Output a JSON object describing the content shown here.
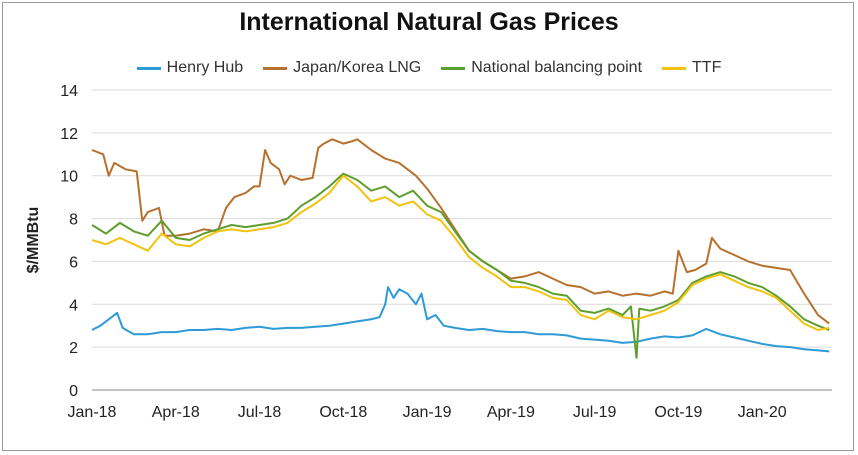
{
  "chart_data": {
    "type": "line",
    "title": "International Natural Gas Prices",
    "xlabel": "",
    "ylabel": "$/MMBtu",
    "ylim": [
      0,
      14
    ],
    "yticks": [
      0,
      2,
      4,
      6,
      8,
      10,
      12,
      14
    ],
    "xticks": [
      {
        "label": "Jan-18",
        "t": 0
      },
      {
        "label": "Apr-18",
        "t": 3
      },
      {
        "label": "Jul-18",
        "t": 6
      },
      {
        "label": "Oct-18",
        "t": 9
      },
      {
        "label": "Jan-19",
        "t": 12
      },
      {
        "label": "Apr-19",
        "t": 15
      },
      {
        "label": "Jul-19",
        "t": 18
      },
      {
        "label": "Oct-19",
        "t": 21
      },
      {
        "label": "Jan-20",
        "t": 24
      }
    ],
    "xlim": [
      0,
      26.5
    ],
    "grid": "horizontal",
    "legend_position": "top",
    "series": [
      {
        "name": "Henry Hub",
        "color": "#2e9bd6",
        "points": [
          [
            0,
            2.8
          ],
          [
            0.3,
            3.0
          ],
          [
            0.6,
            3.3
          ],
          [
            0.9,
            3.6
          ],
          [
            1.1,
            2.9
          ],
          [
            1.5,
            2.6
          ],
          [
            2,
            2.6
          ],
          [
            2.5,
            2.7
          ],
          [
            3,
            2.7
          ],
          [
            3.5,
            2.8
          ],
          [
            4,
            2.8
          ],
          [
            4.5,
            2.85
          ],
          [
            5,
            2.8
          ],
          [
            5.5,
            2.9
          ],
          [
            6,
            2.95
          ],
          [
            6.5,
            2.85
          ],
          [
            7,
            2.9
          ],
          [
            7.5,
            2.9
          ],
          [
            8,
            2.95
          ],
          [
            8.5,
            3.0
          ],
          [
            9,
            3.1
          ],
          [
            9.5,
            3.2
          ],
          [
            10,
            3.3
          ],
          [
            10.3,
            3.4
          ],
          [
            10.5,
            4.0
          ],
          [
            10.6,
            4.8
          ],
          [
            10.8,
            4.3
          ],
          [
            11,
            4.7
          ],
          [
            11.3,
            4.5
          ],
          [
            11.6,
            4.0
          ],
          [
            11.8,
            4.5
          ],
          [
            12,
            3.3
          ],
          [
            12.3,
            3.5
          ],
          [
            12.6,
            3.0
          ],
          [
            13,
            2.9
          ],
          [
            13.5,
            2.8
          ],
          [
            14,
            2.85
          ],
          [
            14.5,
            2.75
          ],
          [
            15,
            2.7
          ],
          [
            15.5,
            2.7
          ],
          [
            16,
            2.6
          ],
          [
            16.5,
            2.6
          ],
          [
            17,
            2.55
          ],
          [
            17.5,
            2.4
          ],
          [
            18,
            2.35
          ],
          [
            18.5,
            2.3
          ],
          [
            19,
            2.2
          ],
          [
            19.5,
            2.25
          ],
          [
            20,
            2.4
          ],
          [
            20.5,
            2.5
          ],
          [
            21,
            2.45
          ],
          [
            21.5,
            2.55
          ],
          [
            22,
            2.85
          ],
          [
            22.5,
            2.6
          ],
          [
            23,
            2.45
          ],
          [
            23.5,
            2.3
          ],
          [
            24,
            2.15
          ],
          [
            24.5,
            2.05
          ],
          [
            25,
            2.0
          ],
          [
            25.5,
            1.9
          ],
          [
            26,
            1.85
          ],
          [
            26.4,
            1.8
          ]
        ]
      },
      {
        "name": "Japan/Korea LNG",
        "color": "#b5712d",
        "points": [
          [
            0,
            11.2
          ],
          [
            0.4,
            11.0
          ],
          [
            0.6,
            10.0
          ],
          [
            0.8,
            10.6
          ],
          [
            1.2,
            10.3
          ],
          [
            1.6,
            10.2
          ],
          [
            1.8,
            7.9
          ],
          [
            2.0,
            8.3
          ],
          [
            2.4,
            8.5
          ],
          [
            2.6,
            7.2
          ],
          [
            3,
            7.2
          ],
          [
            3.5,
            7.3
          ],
          [
            4,
            7.5
          ],
          [
            4.5,
            7.4
          ],
          [
            4.8,
            8.5
          ],
          [
            5.1,
            9.0
          ],
          [
            5.5,
            9.2
          ],
          [
            5.8,
            9.5
          ],
          [
            6,
            9.5
          ],
          [
            6.2,
            11.2
          ],
          [
            6.4,
            10.6
          ],
          [
            6.7,
            10.3
          ],
          [
            6.9,
            9.6
          ],
          [
            7.1,
            10.0
          ],
          [
            7.5,
            9.8
          ],
          [
            7.9,
            9.9
          ],
          [
            8.1,
            11.3
          ],
          [
            8.3,
            11.5
          ],
          [
            8.6,
            11.7
          ],
          [
            9,
            11.5
          ],
          [
            9.3,
            11.6
          ],
          [
            9.5,
            11.7
          ],
          [
            10,
            11.2
          ],
          [
            10.5,
            10.8
          ],
          [
            11,
            10.6
          ],
          [
            11.3,
            10.3
          ],
          [
            11.6,
            10.0
          ],
          [
            12,
            9.4
          ],
          [
            12.5,
            8.5
          ],
          [
            13,
            7.5
          ],
          [
            13.5,
            6.5
          ],
          [
            14,
            6.0
          ],
          [
            14.5,
            5.6
          ],
          [
            15,
            5.2
          ],
          [
            15.5,
            5.3
          ],
          [
            16,
            5.5
          ],
          [
            16.5,
            5.2
          ],
          [
            17,
            4.9
          ],
          [
            17.5,
            4.8
          ],
          [
            18,
            4.5
          ],
          [
            18.5,
            4.6
          ],
          [
            19,
            4.4
          ],
          [
            19.5,
            4.5
          ],
          [
            20,
            4.4
          ],
          [
            20.5,
            4.6
          ],
          [
            20.8,
            4.5
          ],
          [
            21,
            6.5
          ],
          [
            21.3,
            5.5
          ],
          [
            21.6,
            5.6
          ],
          [
            22,
            5.9
          ],
          [
            22.2,
            7.1
          ],
          [
            22.5,
            6.6
          ],
          [
            23,
            6.3
          ],
          [
            23.5,
            6.0
          ],
          [
            24,
            5.8
          ],
          [
            24.5,
            5.7
          ],
          [
            25,
            5.6
          ],
          [
            25.5,
            4.5
          ],
          [
            26,
            3.5
          ],
          [
            26.4,
            3.1
          ]
        ]
      },
      {
        "name": "National balancing point",
        "color": "#5e9e2e",
        "points": [
          [
            0,
            7.7
          ],
          [
            0.5,
            7.3
          ],
          [
            1,
            7.8
          ],
          [
            1.5,
            7.4
          ],
          [
            2,
            7.2
          ],
          [
            2.5,
            7.9
          ],
          [
            3,
            7.1
          ],
          [
            3.5,
            7.0
          ],
          [
            4,
            7.3
          ],
          [
            4.5,
            7.5
          ],
          [
            5,
            7.7
          ],
          [
            5.5,
            7.6
          ],
          [
            6,
            7.7
          ],
          [
            6.5,
            7.8
          ],
          [
            7,
            8.0
          ],
          [
            7.5,
            8.6
          ],
          [
            8,
            9.0
          ],
          [
            8.5,
            9.5
          ],
          [
            9,
            10.1
          ],
          [
            9.5,
            9.8
          ],
          [
            10,
            9.3
          ],
          [
            10.5,
            9.5
          ],
          [
            11,
            9.0
          ],
          [
            11.5,
            9.3
          ],
          [
            12,
            8.6
          ],
          [
            12.5,
            8.3
          ],
          [
            13,
            7.4
          ],
          [
            13.5,
            6.5
          ],
          [
            14,
            6.0
          ],
          [
            14.5,
            5.6
          ],
          [
            15,
            5.1
          ],
          [
            15.5,
            5.0
          ],
          [
            16,
            4.8
          ],
          [
            16.5,
            4.5
          ],
          [
            17,
            4.4
          ],
          [
            17.5,
            3.7
          ],
          [
            18,
            3.6
          ],
          [
            18.5,
            3.8
          ],
          [
            19,
            3.5
          ],
          [
            19.3,
            3.9
          ],
          [
            19.5,
            1.5
          ],
          [
            19.6,
            3.8
          ],
          [
            20,
            3.7
          ],
          [
            20.5,
            3.9
          ],
          [
            21,
            4.2
          ],
          [
            21.5,
            5.0
          ],
          [
            22,
            5.3
          ],
          [
            22.5,
            5.5
          ],
          [
            23,
            5.3
          ],
          [
            23.5,
            5.0
          ],
          [
            24,
            4.8
          ],
          [
            24.5,
            4.4
          ],
          [
            25,
            3.9
          ],
          [
            25.5,
            3.3
          ],
          [
            26,
            3.0
          ],
          [
            26.4,
            2.8
          ]
        ]
      },
      {
        "name": "TTF",
        "color": "#f2c20f",
        "points": [
          [
            0,
            7.0
          ],
          [
            0.5,
            6.8
          ],
          [
            1,
            7.1
          ],
          [
            1.5,
            6.8
          ],
          [
            2,
            6.5
          ],
          [
            2.5,
            7.3
          ],
          [
            3,
            6.8
          ],
          [
            3.5,
            6.7
          ],
          [
            4,
            7.1
          ],
          [
            4.5,
            7.4
          ],
          [
            5,
            7.5
          ],
          [
            5.5,
            7.4
          ],
          [
            6,
            7.5
          ],
          [
            6.5,
            7.6
          ],
          [
            7,
            7.8
          ],
          [
            7.5,
            8.3
          ],
          [
            8,
            8.7
          ],
          [
            8.5,
            9.2
          ],
          [
            9,
            10.0
          ],
          [
            9.5,
            9.5
          ],
          [
            10,
            8.8
          ],
          [
            10.5,
            9.0
          ],
          [
            11,
            8.6
          ],
          [
            11.5,
            8.8
          ],
          [
            12,
            8.2
          ],
          [
            12.5,
            7.9
          ],
          [
            13,
            7.1
          ],
          [
            13.5,
            6.2
          ],
          [
            14,
            5.7
          ],
          [
            14.5,
            5.3
          ],
          [
            15,
            4.8
          ],
          [
            15.5,
            4.8
          ],
          [
            16,
            4.6
          ],
          [
            16.5,
            4.3
          ],
          [
            17,
            4.2
          ],
          [
            17.5,
            3.5
          ],
          [
            18,
            3.3
          ],
          [
            18.5,
            3.7
          ],
          [
            19,
            3.4
          ],
          [
            19.5,
            3.3
          ],
          [
            20,
            3.5
          ],
          [
            20.5,
            3.7
          ],
          [
            21,
            4.1
          ],
          [
            21.5,
            4.9
          ],
          [
            22,
            5.2
          ],
          [
            22.5,
            5.4
          ],
          [
            23,
            5.1
          ],
          [
            23.5,
            4.8
          ],
          [
            24,
            4.6
          ],
          [
            24.5,
            4.3
          ],
          [
            25,
            3.7
          ],
          [
            25.5,
            3.1
          ],
          [
            26,
            2.8
          ],
          [
            26.4,
            2.9
          ]
        ]
      }
    ]
  }
}
